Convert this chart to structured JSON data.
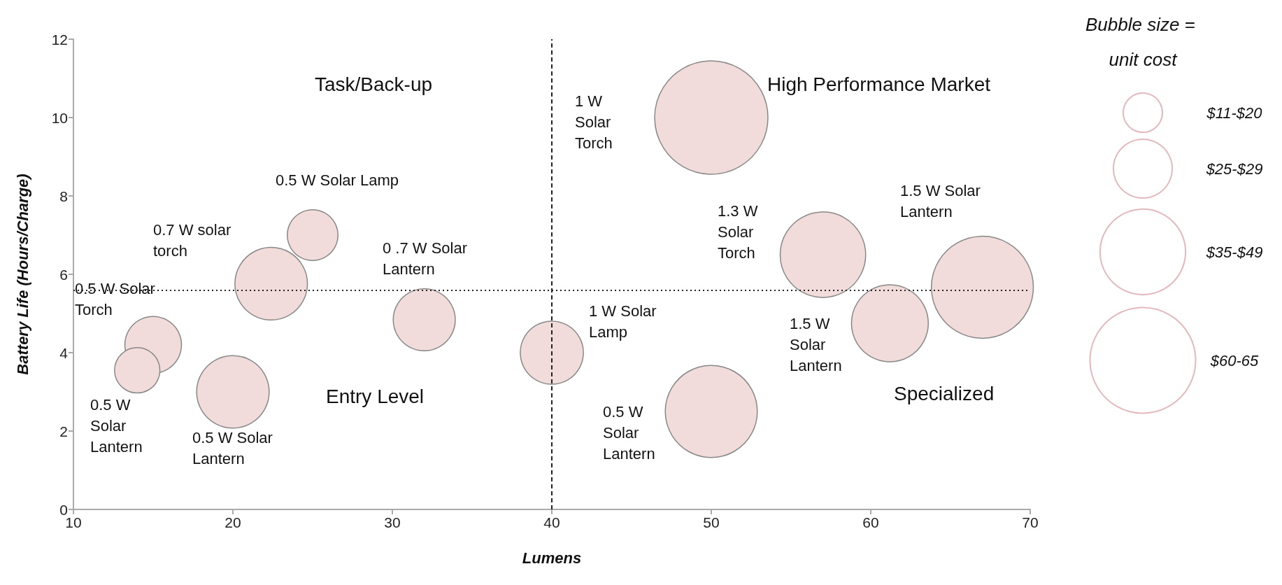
{
  "chart_data": {
    "type": "bubble",
    "xlabel": "Lumens",
    "ylabel": "Battery Life (Hours/Charge)",
    "x": [
      15,
      14,
      20,
      22.4,
      25,
      32,
      40,
      50,
      50,
      57,
      61.2,
      67
    ],
    "series": [
      {
        "color": "#f2dcdb",
        "values": [
          4.2,
          3.55,
          3.0,
          5.76,
          7.0,
          4.84,
          4.0,
          10.0,
          2.5,
          6.5,
          4.75,
          5.67
        ],
        "sizes": [
          0.25,
          0.16,
          0.41,
          0.41,
          0.2,
          0.3,
          0.31,
          1,
          0.66,
          0.57,
          0.46,
          0.81
        ]
      }
    ],
    "xlim": [
      10,
      70
    ],
    "xticks": [
      10,
      20,
      30,
      40,
      50,
      60,
      70
    ],
    "ylim": [
      0,
      12
    ],
    "yticks": [
      0,
      2,
      4,
      6,
      8,
      10,
      12
    ],
    "grid": false,
    "legend_title": "Bubble size = unit cost",
    "size_legend": [
      {
        "value": 0.12,
        "label": "$11-$20"
      },
      {
        "value": 0.27,
        "label": "$25-$29"
      },
      {
        "value": 0.57,
        "label": "$35-$49"
      },
      {
        "value": 0.87,
        "label": "$60-65"
      }
    ],
    "ref_lines": [
      {
        "axis": "x",
        "value": 40,
        "line_style": "dashed",
        "color": "#222222"
      },
      {
        "axis": "y",
        "value": 5.6,
        "line_style": "dotted",
        "color": "#222222"
      }
    ],
    "annotations": [
      "0.5 W Solar\nTorch",
      "0.5 W\nSolar\nLantern",
      "0.5 W Solar\nLantern",
      "0.7 W solar\ntorch",
      "0.5 W Solar Lamp",
      "0 .7 W Solar\nLantern",
      "1 W Solar\nLamp",
      "1 W\nSolar\nTorch",
      "0.5 W\nSolar\nLantern",
      "1.3 W\nSolar\nTorch",
      "1.5 W\nSolar\nLantern",
      "1.5 W Solar\nLantern",
      "Task/Back-up",
      "High Performance Market",
      "Entry Level",
      "Specialized"
    ]
  }
}
